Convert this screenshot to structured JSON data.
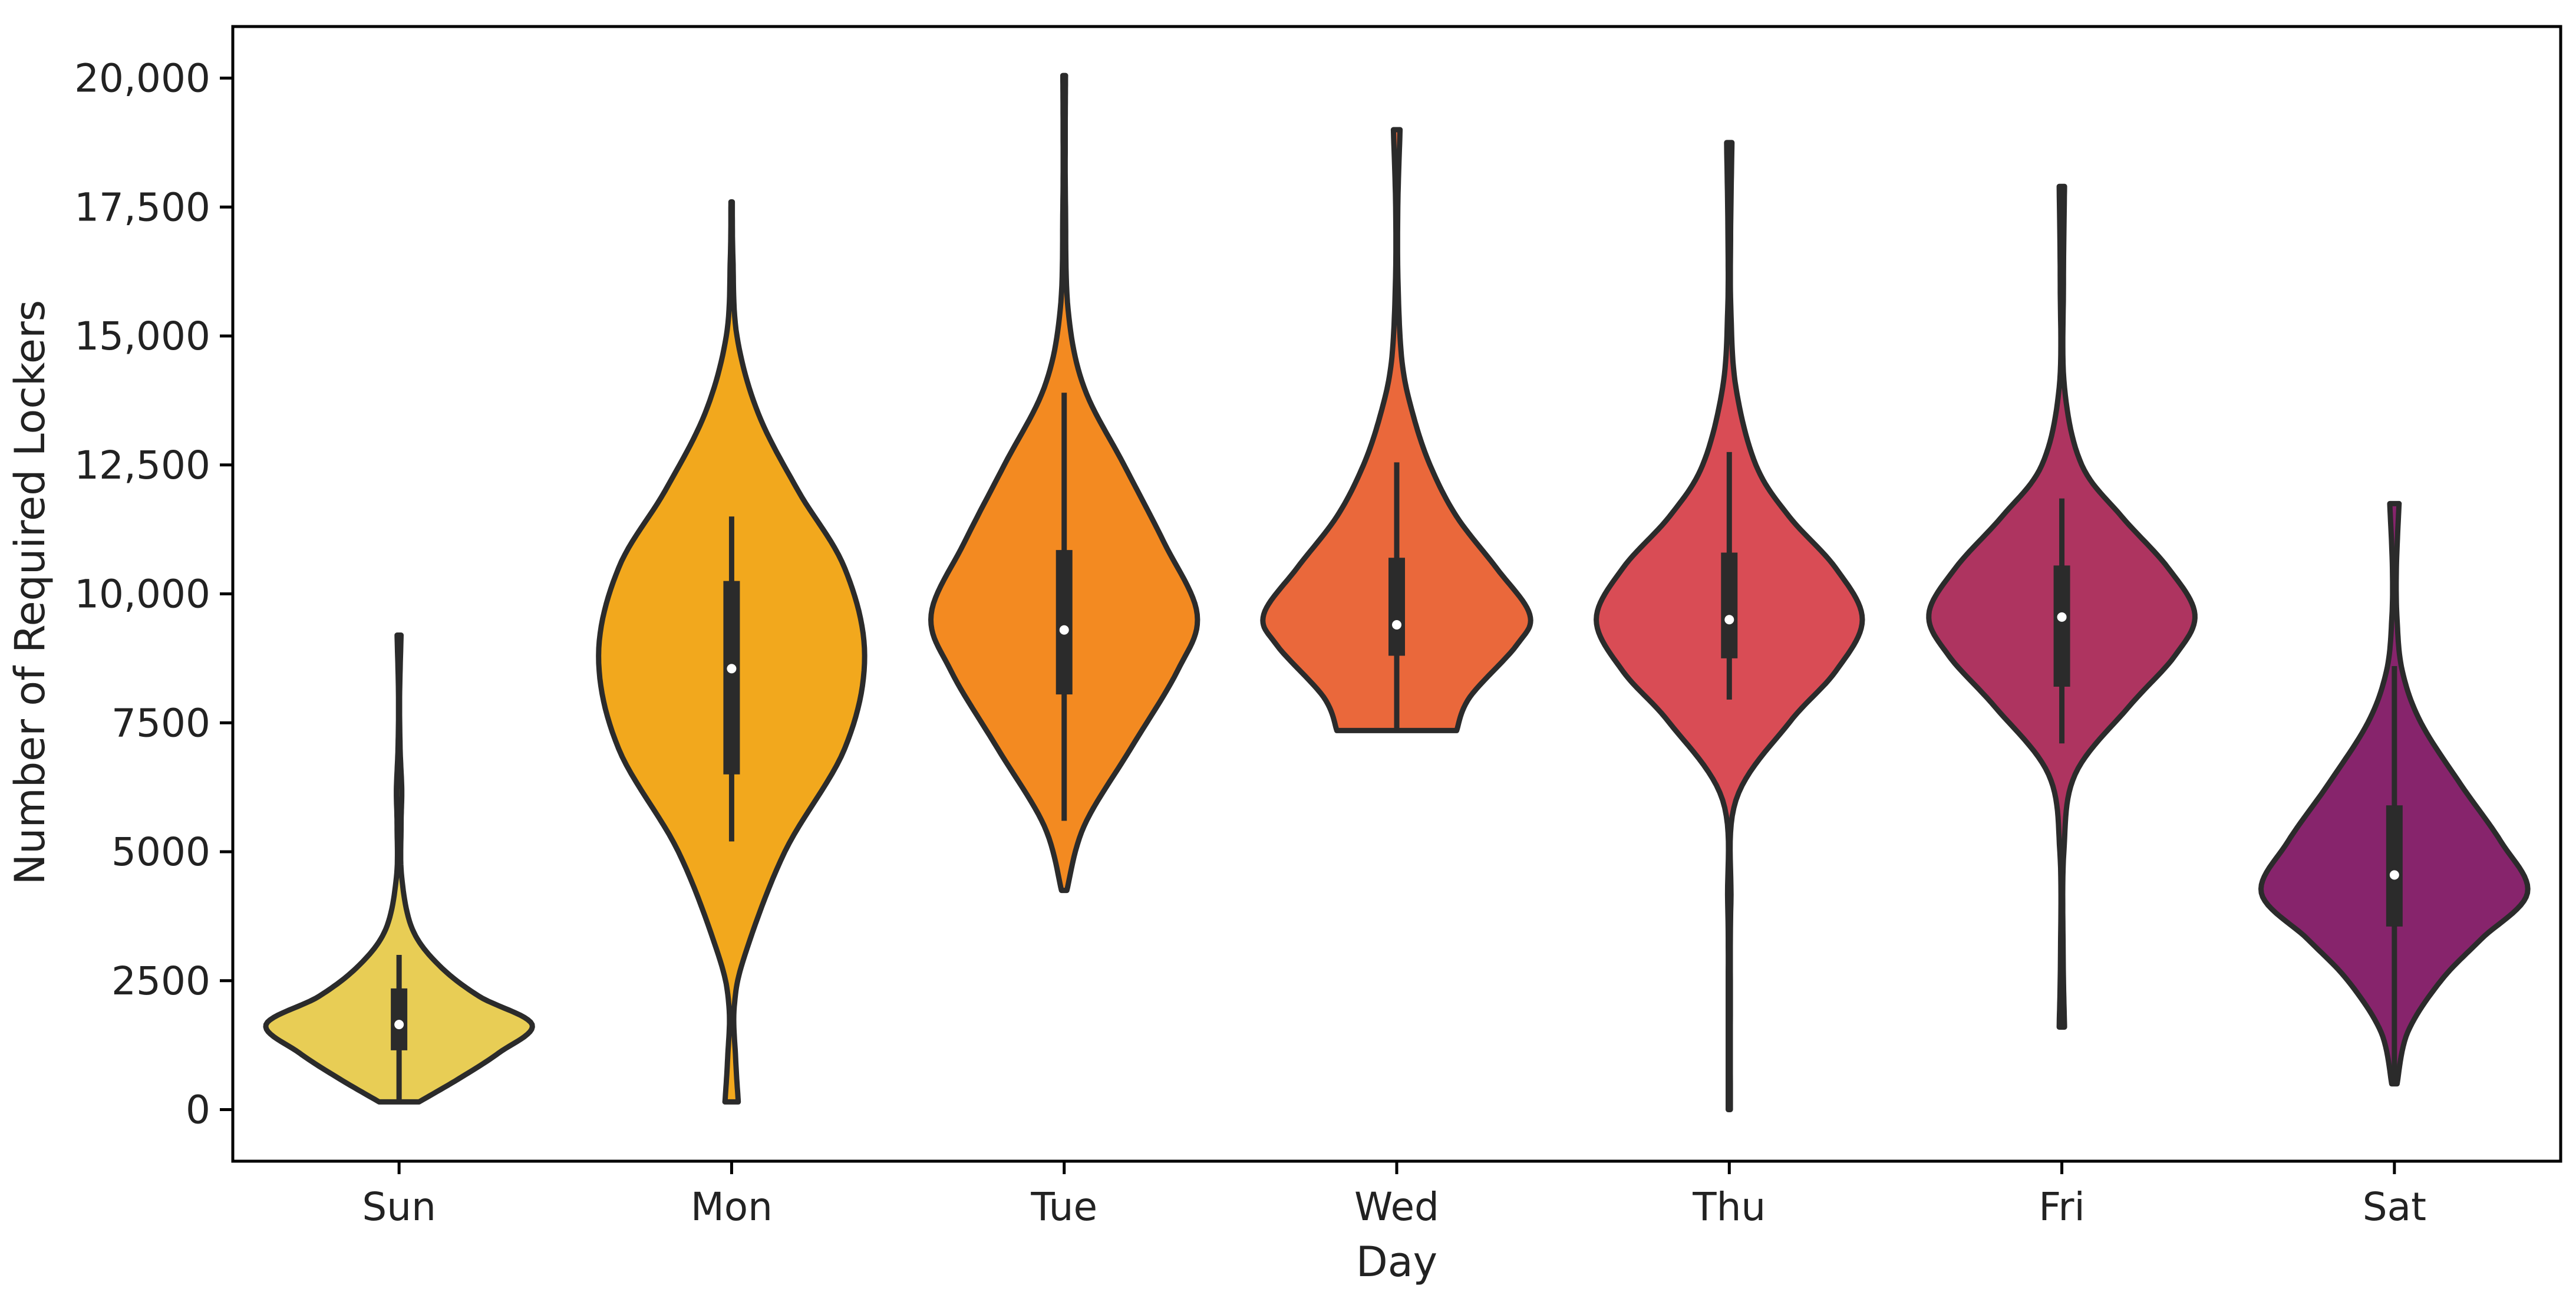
{
  "chart_data": {
    "type": "violin",
    "title": "",
    "xlabel": "Day",
    "ylabel": "Number of Required Lockers",
    "ylim": [
      -1000,
      21000
    ],
    "grid": false,
    "yticks": [
      {
        "value": 0,
        "label": "0"
      },
      {
        "value": 2500,
        "label": "2500"
      },
      {
        "value": 5000,
        "label": "5000"
      },
      {
        "value": 7500,
        "label": "7500"
      },
      {
        "value": 10000,
        "label": "10,000"
      },
      {
        "value": 12500,
        "label": "12,500"
      },
      {
        "value": 15000,
        "label": "15,000"
      },
      {
        "value": 17500,
        "label": "17,500"
      },
      {
        "value": 20000,
        "label": "20,000"
      }
    ],
    "categories": [
      "Sun",
      "Mon",
      "Tue",
      "Wed",
      "Thu",
      "Fri",
      "Sat"
    ],
    "violins": [
      {
        "category": "Sun",
        "color": "#E8CD55",
        "min": 150,
        "q1": 1150,
        "median": 1650,
        "q3": 2350,
        "max": 9200,
        "whisker_low": 150,
        "whisker_high": 3000,
        "density": [
          [
            150,
            0.15
          ],
          [
            600,
            0.45
          ],
          [
            1100,
            0.75
          ],
          [
            1650,
            1.0
          ],
          [
            2200,
            0.6
          ],
          [
            2800,
            0.3
          ],
          [
            3500,
            0.1
          ],
          [
            4500,
            0.02
          ],
          [
            5500,
            0.015
          ],
          [
            6200,
            0.02
          ],
          [
            7000,
            0.008
          ],
          [
            8000,
            0.004
          ],
          [
            9200,
            0.015
          ]
        ]
      },
      {
        "category": "Mon",
        "color": "#F2A81D",
        "min": 150,
        "q1": 6500,
        "median": 8550,
        "q3": 10250,
        "max": 17600,
        "whisker_low": 5200,
        "whisker_high": 11500,
        "density": [
          [
            150,
            0.05
          ],
          [
            1000,
            0.03
          ],
          [
            2000,
            0.02
          ],
          [
            3000,
            0.1
          ],
          [
            5000,
            0.4
          ],
          [
            7000,
            0.85
          ],
          [
            8800,
            1.0
          ],
          [
            10500,
            0.85
          ],
          [
            12000,
            0.5
          ],
          [
            13500,
            0.2
          ],
          [
            15000,
            0.04
          ],
          [
            16500,
            0.01
          ],
          [
            17600,
            0.005
          ]
        ]
      },
      {
        "category": "Tue",
        "color": "#F38A21",
        "min": 4250,
        "q1": 8050,
        "median": 9300,
        "q3": 10850,
        "max": 20050,
        "whisker_low": 5600,
        "whisker_high": 13900,
        "density": [
          [
            4250,
            0.02
          ],
          [
            5500,
            0.15
          ],
          [
            7000,
            0.5
          ],
          [
            8500,
            0.85
          ],
          [
            9600,
            1.0
          ],
          [
            11000,
            0.75
          ],
          [
            12500,
            0.45
          ],
          [
            14000,
            0.15
          ],
          [
            15500,
            0.03
          ],
          [
            17500,
            0.01
          ],
          [
            19000,
            0.008
          ],
          [
            20050,
            0.01
          ]
        ]
      },
      {
        "category": "Wed",
        "color": "#EA683B",
        "min": 7350,
        "q1": 8800,
        "median": 9400,
        "q3": 10700,
        "max": 19000,
        "whisker_low": 7350,
        "whisker_high": 12550,
        "density": [
          [
            7350,
            0.45
          ],
          [
            8000,
            0.55
          ],
          [
            9000,
            0.9
          ],
          [
            9600,
            1.0
          ],
          [
            10500,
            0.75
          ],
          [
            11500,
            0.45
          ],
          [
            12500,
            0.25
          ],
          [
            13500,
            0.12
          ],
          [
            14500,
            0.04
          ],
          [
            16000,
            0.01
          ],
          [
            17500,
            0.008
          ],
          [
            19000,
            0.025
          ]
        ]
      },
      {
        "category": "Thu",
        "color": "#D94C55",
        "min": 0,
        "q1": 8750,
        "median": 9500,
        "q3": 10800,
        "max": 18750,
        "whisker_low": 7950,
        "whisker_high": 12750,
        "density": [
          [
            0,
            0.008
          ],
          [
            2000,
            0.008
          ],
          [
            4000,
            0.012
          ],
          [
            6000,
            0.05
          ],
          [
            7500,
            0.45
          ],
          [
            8500,
            0.8
          ],
          [
            9500,
            1.0
          ],
          [
            10500,
            0.8
          ],
          [
            11500,
            0.45
          ],
          [
            12500,
            0.2
          ],
          [
            14000,
            0.05
          ],
          [
            15500,
            0.012
          ],
          [
            17000,
            0.01
          ],
          [
            18750,
            0.02
          ]
        ]
      },
      {
        "category": "Fri",
        "color": "#AE3460",
        "min": 1600,
        "q1": 8200,
        "median": 9550,
        "q3": 10550,
        "max": 17900,
        "whisker_low": 7100,
        "whisker_high": 11850,
        "density": [
          [
            1600,
            0.02
          ],
          [
            3000,
            0.01
          ],
          [
            5000,
            0.015
          ],
          [
            6500,
            0.1
          ],
          [
            7800,
            0.5
          ],
          [
            8800,
            0.85
          ],
          [
            9600,
            1.0
          ],
          [
            10500,
            0.8
          ],
          [
            11500,
            0.45
          ],
          [
            12500,
            0.15
          ],
          [
            14000,
            0.02
          ],
          [
            16000,
            0.012
          ],
          [
            17900,
            0.02
          ]
        ]
      },
      {
        "category": "Sat",
        "color": "#87246C",
        "min": 500,
        "q1": 3550,
        "median": 4550,
        "q3": 5900,
        "max": 11750,
        "whisker_low": 500,
        "whisker_high": 8600,
        "density": [
          [
            500,
            0.02
          ],
          [
            1500,
            0.1
          ],
          [
            2500,
            0.35
          ],
          [
            3300,
            0.65
          ],
          [
            4200,
            1.0
          ],
          [
            5200,
            0.8
          ],
          [
            6300,
            0.5
          ],
          [
            7500,
            0.2
          ],
          [
            8500,
            0.06
          ],
          [
            9500,
            0.02
          ],
          [
            10500,
            0.015
          ],
          [
            11750,
            0.035
          ]
        ]
      }
    ]
  }
}
